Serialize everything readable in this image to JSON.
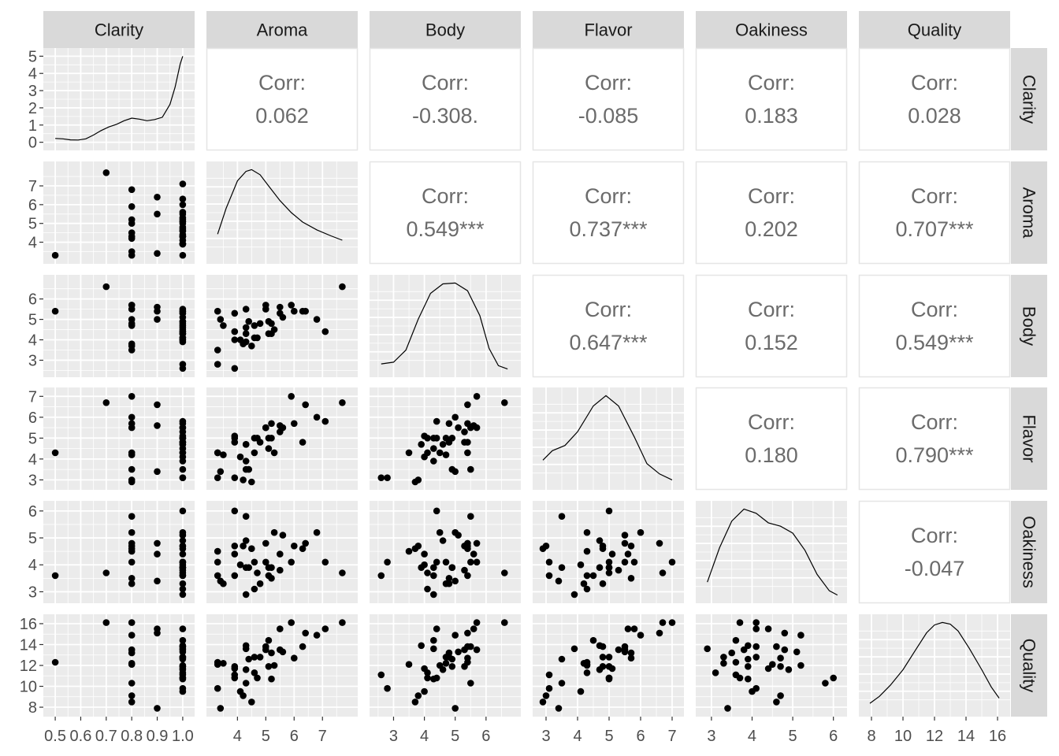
{
  "chart_data": {
    "type": "scatter-matrix",
    "variables": [
      "Clarity",
      "Aroma",
      "Body",
      "Flavor",
      "Oakiness",
      "Quality"
    ],
    "corr_label": "Corr:",
    "correlations": [
      {
        "row": "Clarity",
        "col": "Aroma",
        "value": "0.062"
      },
      {
        "row": "Clarity",
        "col": "Body",
        "value": "-0.308."
      },
      {
        "row": "Clarity",
        "col": "Flavor",
        "value": "-0.085"
      },
      {
        "row": "Clarity",
        "col": "Oakiness",
        "value": "0.183"
      },
      {
        "row": "Clarity",
        "col": "Quality",
        "value": "0.028"
      },
      {
        "row": "Aroma",
        "col": "Body",
        "value": "0.549***"
      },
      {
        "row": "Aroma",
        "col": "Flavor",
        "value": "0.737***"
      },
      {
        "row": "Aroma",
        "col": "Oakiness",
        "value": "0.202"
      },
      {
        "row": "Aroma",
        "col": "Quality",
        "value": "0.707***"
      },
      {
        "row": "Body",
        "col": "Flavor",
        "value": "0.647***"
      },
      {
        "row": "Body",
        "col": "Oakiness",
        "value": "0.152"
      },
      {
        "row": "Body",
        "col": "Quality",
        "value": "0.549***"
      },
      {
        "row": "Flavor",
        "col": "Oakiness",
        "value": "0.180"
      },
      {
        "row": "Flavor",
        "col": "Quality",
        "value": "0.790***"
      },
      {
        "row": "Oakiness",
        "col": "Quality",
        "value": "-0.047"
      }
    ],
    "x_axis_ticks": {
      "Clarity": [
        [
          "0.5",
          0.5
        ],
        [
          "0.6",
          0.6
        ],
        [
          "0.7",
          0.7
        ],
        [
          "0.8",
          0.8
        ],
        [
          "0.9",
          0.9
        ],
        [
          "1.0",
          1.0
        ]
      ],
      "Aroma": [
        [
          "4",
          4
        ],
        [
          "5",
          5
        ],
        [
          "6",
          6
        ],
        [
          "7",
          7
        ]
      ],
      "Body": [
        [
          "3",
          3
        ],
        [
          "4",
          4
        ],
        [
          "5",
          5
        ],
        [
          "6",
          6
        ]
      ],
      "Flavor": [
        [
          "3",
          3
        ],
        [
          "4",
          4
        ],
        [
          "5",
          5
        ],
        [
          "6",
          6
        ],
        [
          "7",
          7
        ]
      ],
      "Oakiness": [
        [
          "3",
          3
        ],
        [
          "4",
          4
        ],
        [
          "5",
          5
        ],
        [
          "6",
          6
        ]
      ],
      "Quality": [
        [
          "8",
          8
        ],
        [
          "10",
          10
        ],
        [
          "12",
          12
        ],
        [
          "14",
          14
        ],
        [
          "16",
          16
        ]
      ]
    },
    "y_axis_ticks": {
      "Clarity": [
        [
          "0",
          0
        ],
        [
          "1",
          1
        ],
        [
          "2",
          2
        ],
        [
          "3",
          3
        ],
        [
          "4",
          4
        ],
        [
          "5",
          5
        ]
      ],
      "Aroma": [
        [
          "4",
          4
        ],
        [
          "5",
          5
        ],
        [
          "6",
          6
        ],
        [
          "7",
          7
        ]
      ],
      "Body": [
        [
          "3",
          3
        ],
        [
          "4",
          4
        ],
        [
          "5",
          5
        ],
        [
          "6",
          6
        ]
      ],
      "Flavor": [
        [
          "3",
          3
        ],
        [
          "4",
          4
        ],
        [
          "5",
          5
        ],
        [
          "6",
          6
        ],
        [
          "7",
          7
        ]
      ],
      "Oakiness": [
        [
          "3",
          3
        ],
        [
          "4",
          4
        ],
        [
          "5",
          5
        ],
        [
          "6",
          6
        ]
      ],
      "Quality": [
        [
          "8",
          8
        ],
        [
          "10",
          10
        ],
        [
          "12",
          12
        ],
        [
          "14",
          14
        ],
        [
          "16",
          16
        ]
      ]
    },
    "density_y_range": [
      -0.2,
      5.2
    ],
    "ranges": {
      "Clarity": [
        0.475,
        1.025
      ],
      "Aroma": [
        3.1,
        8.05
      ],
      "Body": [
        2.4,
        6.95
      ],
      "Flavor": [
        2.75,
        7.2
      ],
      "Oakiness": [
        2.75,
        6.2
      ],
      "Quality": [
        7.55,
        16.45
      ]
    },
    "densities": {
      "Clarity": [
        [
          0.5,
          0.22
        ],
        [
          0.53,
          0.2
        ],
        [
          0.56,
          0.14
        ],
        [
          0.59,
          0.13
        ],
        [
          0.62,
          0.2
        ],
        [
          0.65,
          0.42
        ],
        [
          0.68,
          0.68
        ],
        [
          0.71,
          0.89
        ],
        [
          0.74,
          1.04
        ],
        [
          0.77,
          1.25
        ],
        [
          0.8,
          1.4
        ],
        [
          0.83,
          1.34
        ],
        [
          0.86,
          1.25
        ],
        [
          0.89,
          1.32
        ],
        [
          0.92,
          1.45
        ],
        [
          0.95,
          2.2
        ],
        [
          0.97,
          3.2
        ],
        [
          0.99,
          4.55
        ],
        [
          1.0,
          5.0
        ]
      ],
      "Aroma": [
        [
          3.3,
          0.25
        ],
        [
          3.6,
          0.55
        ],
        [
          4.0,
          0.87
        ],
        [
          4.3,
          0.98
        ],
        [
          4.5,
          1.0
        ],
        [
          4.8,
          0.94
        ],
        [
          5.1,
          0.81
        ],
        [
          5.5,
          0.64
        ],
        [
          5.9,
          0.5
        ],
        [
          6.3,
          0.39
        ],
        [
          6.8,
          0.3
        ],
        [
          7.3,
          0.23
        ],
        [
          7.7,
          0.18
        ]
      ],
      "Body": [
        [
          2.6,
          0.06
        ],
        [
          3.0,
          0.08
        ],
        [
          3.4,
          0.22
        ],
        [
          3.8,
          0.58
        ],
        [
          4.2,
          0.88
        ],
        [
          4.6,
          0.99
        ],
        [
          5.0,
          1.0
        ],
        [
          5.4,
          0.91
        ],
        [
          5.8,
          0.62
        ],
        [
          6.1,
          0.24
        ],
        [
          6.4,
          0.04
        ],
        [
          6.7,
          0.0
        ]
      ],
      "Flavor": [
        [
          2.9,
          0.25
        ],
        [
          3.2,
          0.36
        ],
        [
          3.6,
          0.42
        ],
        [
          4.0,
          0.58
        ],
        [
          4.5,
          0.88
        ],
        [
          4.9,
          1.0
        ],
        [
          5.3,
          0.88
        ],
        [
          5.8,
          0.52
        ],
        [
          6.2,
          0.21
        ],
        [
          6.6,
          0.09
        ],
        [
          7.0,
          0.02
        ]
      ],
      "Oakiness": [
        [
          2.9,
          0.15
        ],
        [
          3.2,
          0.55
        ],
        [
          3.5,
          0.86
        ],
        [
          3.8,
          1.0
        ],
        [
          4.1,
          0.95
        ],
        [
          4.4,
          0.84
        ],
        [
          4.7,
          0.8
        ],
        [
          5.0,
          0.72
        ],
        [
          5.3,
          0.52
        ],
        [
          5.6,
          0.24
        ],
        [
          5.9,
          0.05
        ],
        [
          6.1,
          0.0
        ]
      ],
      "Quality": [
        [
          7.9,
          0.06
        ],
        [
          8.5,
          0.14
        ],
        [
          9.2,
          0.27
        ],
        [
          10.0,
          0.45
        ],
        [
          10.8,
          0.68
        ],
        [
          11.5,
          0.88
        ],
        [
          12.0,
          0.97
        ],
        [
          12.5,
          1.0
        ],
        [
          13.0,
          0.98
        ],
        [
          13.5,
          0.9
        ],
        [
          14.2,
          0.7
        ],
        [
          15.0,
          0.45
        ],
        [
          15.6,
          0.25
        ],
        [
          16.1,
          0.12
        ]
      ]
    },
    "observations": [
      {
        "Clarity": 1.0,
        "Aroma": 3.3,
        "Body": 2.8,
        "Flavor": 3.1,
        "Oakiness": 4.1,
        "Quality": 9.8
      },
      {
        "Clarity": 1.0,
        "Aroma": 4.4,
        "Body": 4.9,
        "Flavor": 3.5,
        "Oakiness": 3.9,
        "Quality": 12.6
      },
      {
        "Clarity": 1.0,
        "Aroma": 3.9,
        "Body": 5.3,
        "Flavor": 4.8,
        "Oakiness": 4.7,
        "Quality": 11.9
      },
      {
        "Clarity": 1.0,
        "Aroma": 3.9,
        "Body": 2.6,
        "Flavor": 3.1,
        "Oakiness": 3.6,
        "Quality": 11.1
      },
      {
        "Clarity": 1.0,
        "Aroma": 5.6,
        "Body": 5.1,
        "Flavor": 5.5,
        "Oakiness": 5.1,
        "Quality": 13.3
      },
      {
        "Clarity": 1.0,
        "Aroma": 4.6,
        "Body": 4.7,
        "Flavor": 5.0,
        "Oakiness": 4.1,
        "Quality": 12.8
      },
      {
        "Clarity": 1.0,
        "Aroma": 4.8,
        "Body": 4.8,
        "Flavor": 4.8,
        "Oakiness": 3.3,
        "Quality": 12.8
      },
      {
        "Clarity": 1.0,
        "Aroma": 5.3,
        "Body": 4.5,
        "Flavor": 4.3,
        "Oakiness": 5.2,
        "Quality": 12.0
      },
      {
        "Clarity": 1.0,
        "Aroma": 4.3,
        "Body": 4.3,
        "Flavor": 3.9,
        "Oakiness": 2.9,
        "Quality": 13.6
      },
      {
        "Clarity": 1.0,
        "Aroma": 4.3,
        "Body": 3.9,
        "Flavor": 4.7,
        "Oakiness": 3.9,
        "Quality": 13.9
      },
      {
        "Clarity": 1.0,
        "Aroma": 5.1,
        "Body": 4.3,
        "Flavor": 4.5,
        "Oakiness": 3.6,
        "Quality": 14.4
      },
      {
        "Clarity": 0.5,
        "Aroma": 3.3,
        "Body": 5.4,
        "Flavor": 4.3,
        "Oakiness": 3.6,
        "Quality": 12.3
      },
      {
        "Clarity": 0.8,
        "Aroma": 5.9,
        "Body": 5.7,
        "Flavor": 7.0,
        "Oakiness": 4.1,
        "Quality": 16.1
      },
      {
        "Clarity": 0.7,
        "Aroma": 7.7,
        "Body": 6.6,
        "Flavor": 6.7,
        "Oakiness": 3.7,
        "Quality": 16.1
      },
      {
        "Clarity": 1.0,
        "Aroma": 7.1,
        "Body": 4.4,
        "Flavor": 5.8,
        "Oakiness": 4.1,
        "Quality": 15.5
      },
      {
        "Clarity": 0.9,
        "Aroma": 5.5,
        "Body": 5.6,
        "Flavor": 5.6,
        "Oakiness": 4.4,
        "Quality": 15.5
      },
      {
        "Clarity": 1.0,
        "Aroma": 6.3,
        "Body": 5.4,
        "Flavor": 4.8,
        "Oakiness": 4.6,
        "Quality": 13.8
      },
      {
        "Clarity": 1.0,
        "Aroma": 5.0,
        "Body": 5.5,
        "Flavor": 5.5,
        "Oakiness": 4.1,
        "Quality": 13.8
      },
      {
        "Clarity": 1.0,
        "Aroma": 4.6,
        "Body": 4.1,
        "Flavor": 4.3,
        "Oakiness": 3.1,
        "Quality": 11.3
      },
      {
        "Clarity": 0.9,
        "Aroma": 3.4,
        "Body": 5.0,
        "Flavor": 3.4,
        "Oakiness": 3.4,
        "Quality": 7.9
      },
      {
        "Clarity": 0.9,
        "Aroma": 6.4,
        "Body": 5.4,
        "Flavor": 6.6,
        "Oakiness": 4.8,
        "Quality": 15.1
      },
      {
        "Clarity": 1.0,
        "Aroma": 5.5,
        "Body": 5.3,
        "Flavor": 5.3,
        "Oakiness": 3.8,
        "Quality": 13.5
      },
      {
        "Clarity": 1.0,
        "Aroma": 4.7,
        "Body": 4.1,
        "Flavor": 5.0,
        "Oakiness": 3.7,
        "Quality": 10.8
      },
      {
        "Clarity": 1.0,
        "Aroma": 4.1,
        "Body": 4.0,
        "Flavor": 4.1,
        "Oakiness": 4.0,
        "Quality": 9.5
      },
      {
        "Clarity": 1.0,
        "Aroma": 6.0,
        "Body": 5.4,
        "Flavor": 5.7,
        "Oakiness": 4.7,
        "Quality": 12.7
      },
      {
        "Clarity": 1.0,
        "Aroma": 4.3,
        "Body": 4.6,
        "Flavor": 4.7,
        "Oakiness": 4.9,
        "Quality": 11.6
      },
      {
        "Clarity": 1.0,
        "Aroma": 3.9,
        "Body": 4.0,
        "Flavor": 5.1,
        "Oakiness": 4.4,
        "Quality": 11.7
      },
      {
        "Clarity": 1.0,
        "Aroma": 5.1,
        "Body": 4.9,
        "Flavor": 5.0,
        "Oakiness": 3.9,
        "Quality": 11.9
      },
      {
        "Clarity": 1.0,
        "Aroma": 3.9,
        "Body": 4.4,
        "Flavor": 5.0,
        "Oakiness": 6.0,
        "Quality": 10.8
      },
      {
        "Clarity": 0.8,
        "Aroma": 4.5,
        "Body": 3.7,
        "Flavor": 2.9,
        "Oakiness": 4.6,
        "Quality": 8.5
      },
      {
        "Clarity": 1.0,
        "Aroma": 5.2,
        "Body": 4.3,
        "Flavor": 5.0,
        "Oakiness": 3.9,
        "Quality": 10.7
      },
      {
        "Clarity": 0.8,
        "Aroma": 4.2,
        "Body": 3.8,
        "Flavor": 3.0,
        "Oakiness": 4.7,
        "Quality": 9.1
      },
      {
        "Clarity": 0.8,
        "Aroma": 3.3,
        "Body": 3.5,
        "Flavor": 4.3,
        "Oakiness": 4.5,
        "Quality": 12.1
      },
      {
        "Clarity": 0.8,
        "Aroma": 6.8,
        "Body": 5.0,
        "Flavor": 6.0,
        "Oakiness": 5.2,
        "Quality": 14.9
      },
      {
        "Clarity": 0.8,
        "Aroma": 5.0,
        "Body": 5.7,
        "Flavor": 5.5,
        "Oakiness": 4.8,
        "Quality": 13.5
      },
      {
        "Clarity": 0.8,
        "Aroma": 3.5,
        "Body": 4.7,
        "Flavor": 4.2,
        "Oakiness": 3.3,
        "Quality": 12.2
      },
      {
        "Clarity": 0.8,
        "Aroma": 4.3,
        "Body": 5.5,
        "Flavor": 3.5,
        "Oakiness": 5.8,
        "Quality": 10.3
      },
      {
        "Clarity": 0.8,
        "Aroma": 5.2,
        "Body": 4.8,
        "Flavor": 5.7,
        "Oakiness": 3.5,
        "Quality": 13.2
      }
    ]
  }
}
